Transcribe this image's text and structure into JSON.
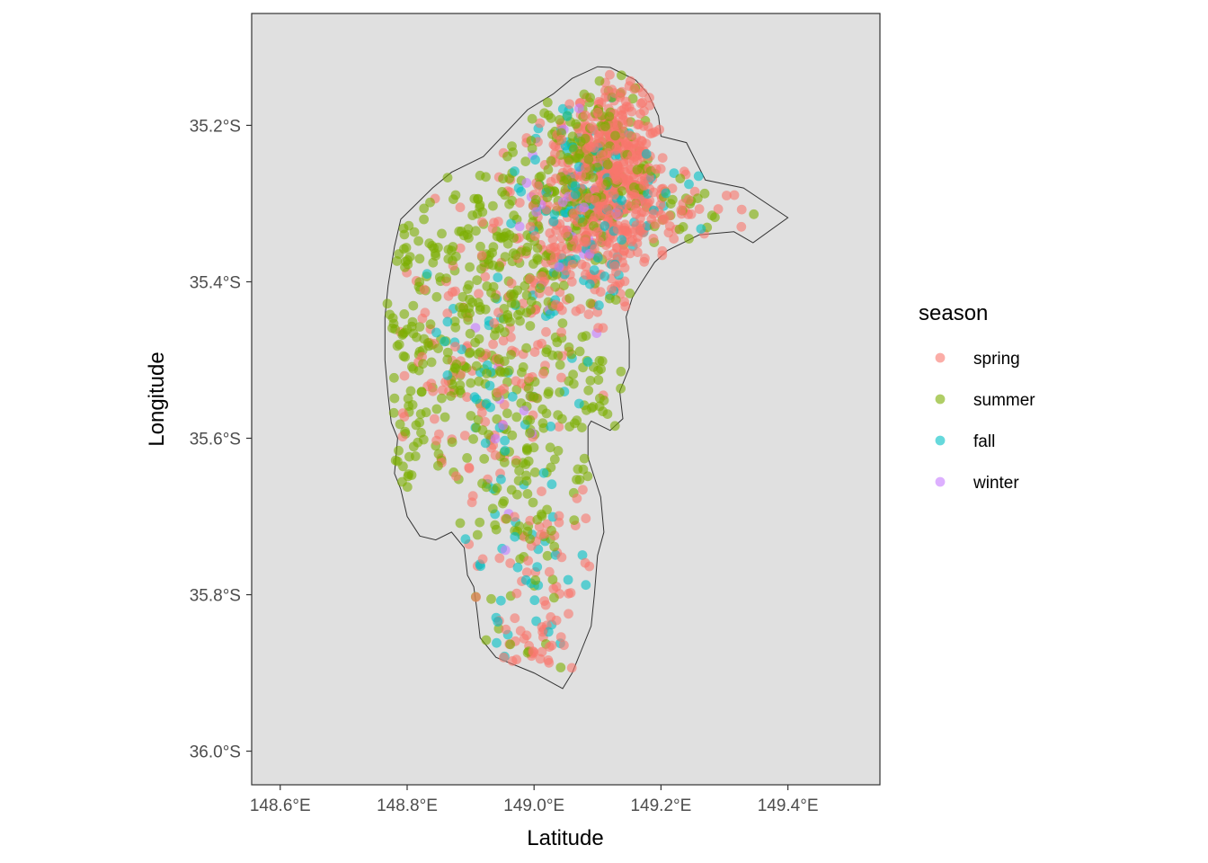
{
  "chart_data": {
    "type": "scatter",
    "title": "",
    "xlabel": "Latitude",
    "ylabel": "Longitude",
    "x_ticks": [
      "148.6°E",
      "148.8°E",
      "149.0°E",
      "149.2°E",
      "149.4°E"
    ],
    "x_tick_values": [
      148.6,
      148.8,
      149.0,
      149.2,
      149.4
    ],
    "y_ticks": [
      "35.2°S",
      "35.4°S",
      "35.6°S",
      "35.8°S",
      "36.0°S"
    ],
    "y_tick_values": [
      -35.2,
      -35.4,
      -35.6,
      -35.8,
      -36.0
    ],
    "xlim": [
      148.555,
      149.545
    ],
    "ylim": [
      -36.043,
      -35.057
    ],
    "grid": false,
    "panel_background": "#e0e0e0",
    "legend": {
      "title": "season",
      "position": "right",
      "entries": [
        {
          "label": "spring",
          "color": "#F8766D"
        },
        {
          "label": "summer",
          "color": "#7CAE00"
        },
        {
          "label": "fall",
          "color": "#00BFC4"
        },
        {
          "label": "winter",
          "color": "#C77CFF"
        }
      ]
    },
    "boundary": [
      [
        149.12,
        -35.126
      ],
      [
        149.16,
        -35.142
      ],
      [
        149.18,
        -35.16
      ],
      [
        149.196,
        -35.188
      ],
      [
        149.2,
        -35.214
      ],
      [
        149.24,
        -35.222
      ],
      [
        149.27,
        -35.27
      ],
      [
        149.33,
        -35.28
      ],
      [
        149.4,
        -35.318
      ],
      [
        149.345,
        -35.35
      ],
      [
        149.315,
        -35.336
      ],
      [
        149.26,
        -35.34
      ],
      [
        149.21,
        -35.36
      ],
      [
        149.19,
        -35.375
      ],
      [
        149.17,
        -35.4
      ],
      [
        149.155,
        -35.42
      ],
      [
        149.145,
        -35.445
      ],
      [
        149.15,
        -35.475
      ],
      [
        149.15,
        -35.51
      ],
      [
        149.135,
        -35.54
      ],
      [
        149.14,
        -35.575
      ],
      [
        149.12,
        -35.59
      ],
      [
        149.09,
        -35.578
      ],
      [
        149.085,
        -35.585
      ],
      [
        149.085,
        -35.625
      ],
      [
        149.095,
        -35.65
      ],
      [
        149.105,
        -35.675
      ],
      [
        149.11,
        -35.72
      ],
      [
        149.1,
        -35.75
      ],
      [
        149.095,
        -35.8
      ],
      [
        149.09,
        -35.84
      ],
      [
        149.075,
        -35.87
      ],
      [
        149.06,
        -35.9
      ],
      [
        149.045,
        -35.92
      ],
      [
        149.0,
        -35.9
      ],
      [
        148.94,
        -35.88
      ],
      [
        148.915,
        -35.855
      ],
      [
        148.91,
        -35.82
      ],
      [
        148.905,
        -35.79
      ],
      [
        148.895,
        -35.775
      ],
      [
        148.89,
        -35.74
      ],
      [
        148.87,
        -35.72
      ],
      [
        148.845,
        -35.73
      ],
      [
        148.82,
        -35.725
      ],
      [
        148.8,
        -35.7
      ],
      [
        148.79,
        -35.665
      ],
      [
        148.78,
        -35.645
      ],
      [
        148.785,
        -35.6
      ],
      [
        148.775,
        -35.58
      ],
      [
        148.77,
        -35.545
      ],
      [
        148.765,
        -35.5
      ],
      [
        148.765,
        -35.445
      ],
      [
        148.77,
        -35.405
      ],
      [
        148.78,
        -35.355
      ],
      [
        148.79,
        -35.32
      ],
      [
        148.815,
        -35.3
      ],
      [
        148.84,
        -35.28
      ],
      [
        148.87,
        -35.26
      ],
      [
        148.92,
        -35.24
      ],
      [
        148.955,
        -35.21
      ],
      [
        148.99,
        -35.18
      ],
      [
        149.03,
        -35.16
      ],
      [
        149.06,
        -35.14
      ],
      [
        149.1,
        -35.125
      ],
      [
        149.12,
        -35.126
      ]
    ],
    "series": [
      {
        "name": "spring",
        "color": "#F8766D",
        "clusters": [
          {
            "lon": 149.13,
            "lat": -35.23,
            "slon": 0.04,
            "slat": 0.05,
            "n": 300
          },
          {
            "lon": 149.08,
            "lat": -35.33,
            "slon": 0.05,
            "slat": 0.06,
            "n": 220
          },
          {
            "lon": 149.15,
            "lat": -35.3,
            "slon": 0.03,
            "slat": 0.04,
            "n": 90
          },
          {
            "lon": 148.97,
            "lat": -35.45,
            "slon": 0.06,
            "slat": 0.08,
            "n": 80
          },
          {
            "lon": 149.0,
            "lat": -35.7,
            "slon": 0.05,
            "slat": 0.1,
            "n": 70
          },
          {
            "lon": 148.85,
            "lat": -35.5,
            "slon": 0.04,
            "slat": 0.08,
            "n": 40
          },
          {
            "lon": 149.25,
            "lat": -35.31,
            "slon": 0.05,
            "slat": 0.02,
            "n": 20
          },
          {
            "lon": 149.0,
            "lat": -35.87,
            "slon": 0.03,
            "slat": 0.02,
            "n": 25
          }
        ]
      },
      {
        "name": "summer",
        "color": "#7CAE00",
        "clusters": [
          {
            "lon": 149.1,
            "lat": -35.26,
            "slon": 0.05,
            "slat": 0.06,
            "n": 200
          },
          {
            "lon": 148.95,
            "lat": -35.34,
            "slon": 0.07,
            "slat": 0.07,
            "n": 150
          },
          {
            "lon": 148.92,
            "lat": -35.5,
            "slon": 0.07,
            "slat": 0.08,
            "n": 140
          },
          {
            "lon": 148.8,
            "lat": -35.5,
            "slon": 0.03,
            "slat": 0.1,
            "n": 70
          },
          {
            "lon": 148.98,
            "lat": -35.7,
            "slon": 0.05,
            "slat": 0.1,
            "n": 90
          },
          {
            "lon": 149.08,
            "lat": -35.55,
            "slon": 0.04,
            "slat": 0.05,
            "n": 50
          },
          {
            "lon": 149.24,
            "lat": -35.32,
            "slon": 0.04,
            "slat": 0.02,
            "n": 15
          }
        ]
      },
      {
        "name": "fall",
        "color": "#00BFC4",
        "clusters": [
          {
            "lon": 149.08,
            "lat": -35.3,
            "slon": 0.06,
            "slat": 0.09,
            "n": 110
          },
          {
            "lon": 148.93,
            "lat": -35.5,
            "slon": 0.06,
            "slat": 0.1,
            "n": 40
          },
          {
            "lon": 148.98,
            "lat": -35.78,
            "slon": 0.05,
            "slat": 0.08,
            "n": 35
          },
          {
            "lon": 149.25,
            "lat": -35.3,
            "slon": 0.05,
            "slat": 0.03,
            "n": 8
          }
        ]
      },
      {
        "name": "winter",
        "color": "#C77CFF",
        "clusters": [
          {
            "lon": 149.05,
            "lat": -35.35,
            "slon": 0.05,
            "slat": 0.08,
            "n": 25
          },
          {
            "lon": 148.96,
            "lat": -35.62,
            "slon": 0.04,
            "slat": 0.1,
            "n": 10
          }
        ]
      }
    ]
  }
}
